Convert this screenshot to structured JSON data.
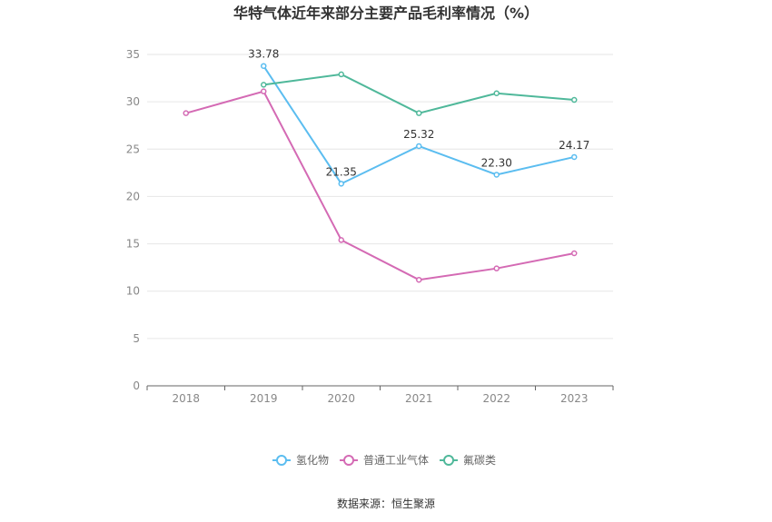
{
  "chart_data": {
    "type": "line",
    "title": "华特气体近年来部分主要产品毛利率情况（%）",
    "categories": [
      "2018",
      "2019",
      "2020",
      "2021",
      "2022",
      "2023"
    ],
    "ylim": [
      0,
      35
    ],
    "yticks": [
      0,
      5,
      10,
      15,
      20,
      25,
      30,
      35
    ],
    "grid": true,
    "legend_position": "bottom",
    "series": [
      {
        "name": "氢化物",
        "color": "#5bbdf0",
        "values": [
          null,
          33.78,
          21.35,
          25.32,
          22.3,
          24.17
        ],
        "labels": [
          null,
          "33.78",
          "21.35",
          "25.32",
          "22.30",
          "24.17"
        ]
      },
      {
        "name": "普通工业气体",
        "color": "#d46ab4",
        "values": [
          28.8,
          31.1,
          15.4,
          11.2,
          12.4,
          14.0
        ],
        "labels": [
          null,
          null,
          null,
          null,
          null,
          null
        ]
      },
      {
        "name": "氟碳类",
        "color": "#4fb89a",
        "values": [
          null,
          31.8,
          32.9,
          28.8,
          30.9,
          30.2
        ],
        "labels": [
          null,
          null,
          null,
          null,
          null,
          null
        ]
      }
    ],
    "source": "数据来源：恒生聚源"
  }
}
